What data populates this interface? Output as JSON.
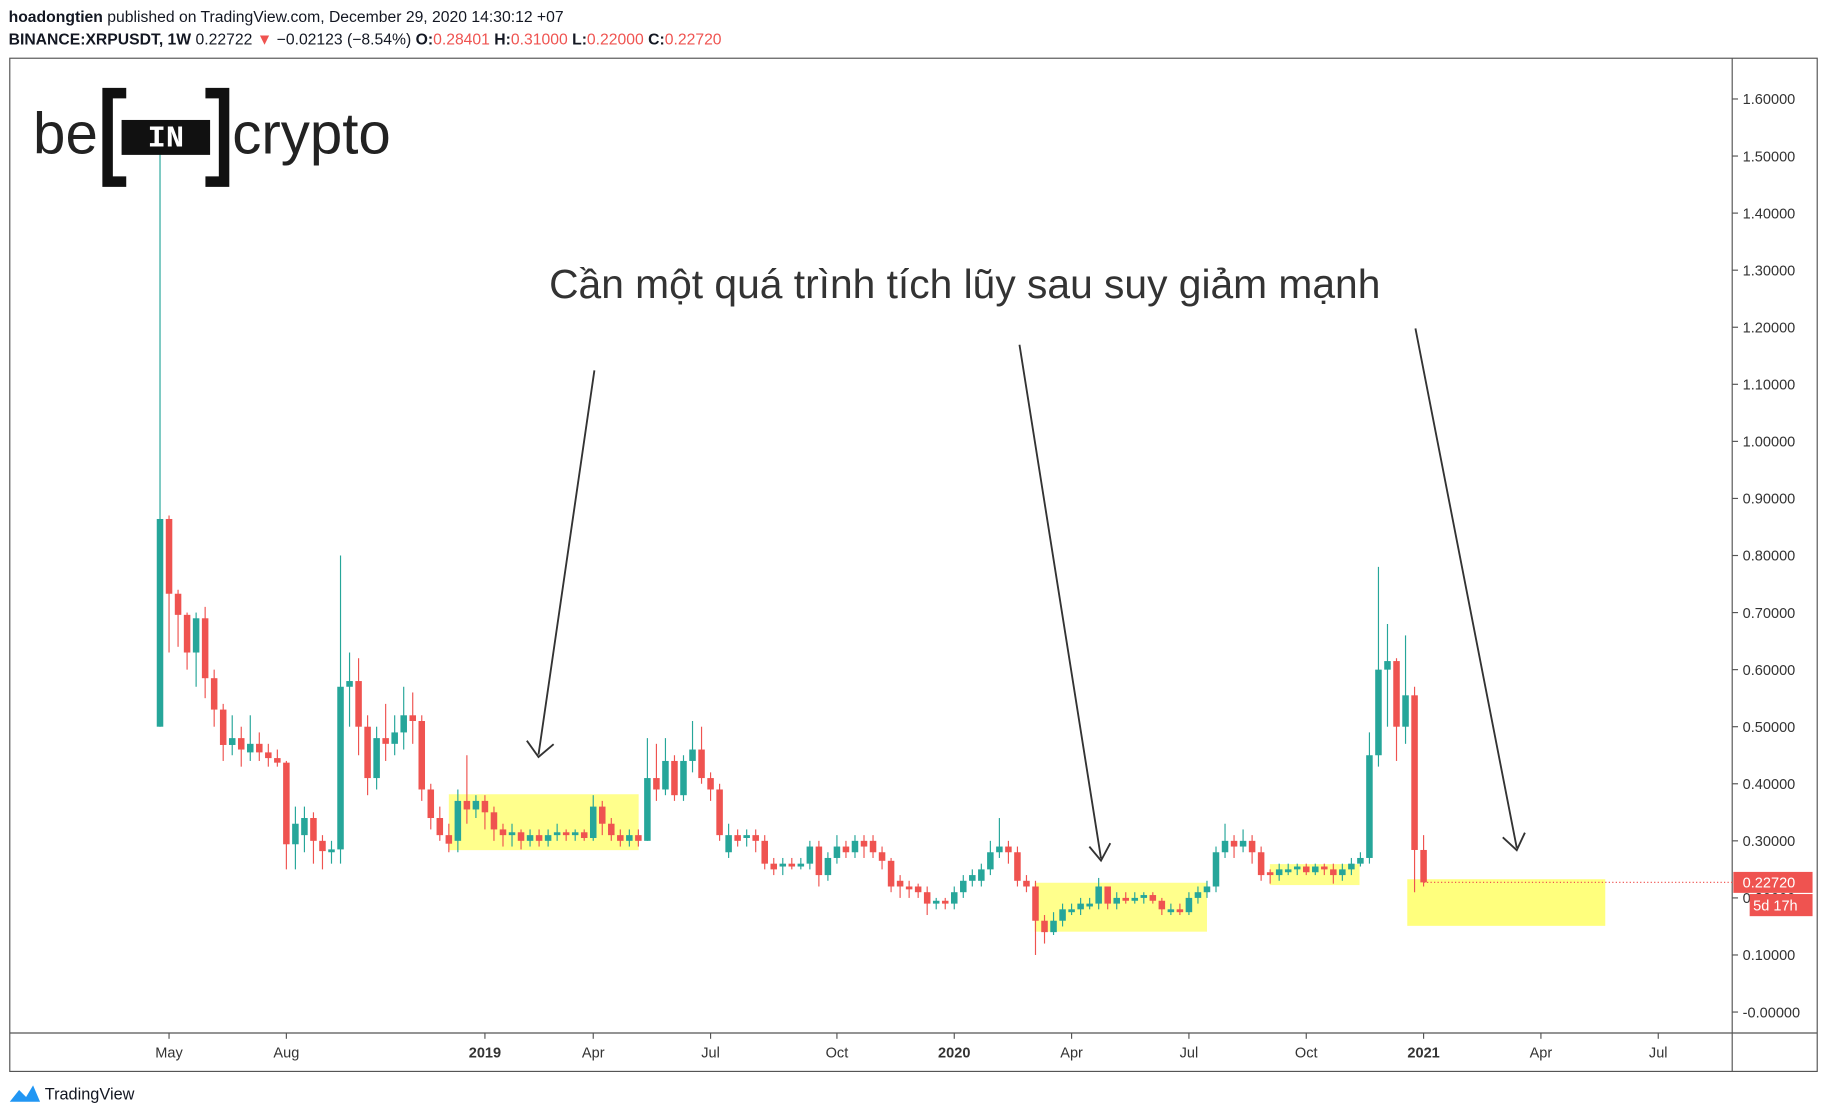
{
  "header": {
    "publisher": "hoadongtien",
    "published_text": "published on TradingView.com, December 29, 2020 14:30:12 +07",
    "symbol": "BINANCE:XRPUSDT, 1W",
    "last": "0.22722",
    "change": "−0.02123 (−8.54%)",
    "o_label": "O:",
    "o": "0.28401",
    "h_label": "H:",
    "h": "0.31000",
    "l_label": "L:",
    "l": "0.22000",
    "c_label": "C:",
    "c": "0.22720"
  },
  "logo": {
    "left": "be",
    "mid": "IN",
    "right": "crypto"
  },
  "footer": {
    "brand": "TradingView"
  },
  "chart_data": {
    "type": "candlestick",
    "annotation": "Cần một quá trình tích lũy sau suy giảm mạnh",
    "price_label": "0.22720",
    "countdown": "5d 17h",
    "up_color": "#26a69a",
    "down_color": "#ef5350",
    "grid": false,
    "ylim": [
      -0.0367,
      1.6714
    ],
    "yticks": [
      {
        "value": 0,
        "label": "-0.00000"
      },
      {
        "value": 0.1,
        "label": "0.10000"
      },
      {
        "value": 0.2,
        "label": "0.20000"
      },
      {
        "value": 0.3,
        "label": "0.30000"
      },
      {
        "value": 0.4,
        "label": "0.40000"
      },
      {
        "value": 0.5,
        "label": "0.50000"
      },
      {
        "value": 0.6,
        "label": "0.60000"
      },
      {
        "value": 0.7,
        "label": "0.70000"
      },
      {
        "value": 0.8,
        "label": "0.80000"
      },
      {
        "value": 0.9,
        "label": "0.90000"
      },
      {
        "value": 1.0,
        "label": "1.00000"
      },
      {
        "value": 1.1,
        "label": "1.10000"
      },
      {
        "value": 1.2,
        "label": "1.20000"
      },
      {
        "value": 1.3,
        "label": "1.30000"
      },
      {
        "value": 1.4,
        "label": "1.40000"
      },
      {
        "value": 1.5,
        "label": "1.50000"
      },
      {
        "value": 1.6,
        "label": "1.60000"
      }
    ],
    "categories": [
      null,
      "May",
      null,
      null,
      null,
      null,
      null,
      null,
      null,
      null,
      null,
      null,
      null,
      null,
      "Aug",
      null,
      null,
      null,
      null,
      null,
      null,
      null,
      null,
      null,
      null,
      null,
      null,
      null,
      null,
      null,
      null,
      null,
      null,
      null,
      null,
      null,
      "2019",
      null,
      null,
      null,
      null,
      null,
      null,
      null,
      null,
      null,
      null,
      null,
      "Apr",
      null,
      null,
      null,
      null,
      null,
      null,
      null,
      null,
      null,
      null,
      null,
      null,
      "Jul",
      null,
      null,
      null,
      null,
      null,
      null,
      null,
      null,
      null,
      null,
      null,
      null,
      null,
      "Oct",
      null,
      null,
      null,
      null,
      null,
      null,
      null,
      null,
      null,
      null,
      null,
      null,
      "2020",
      null,
      null,
      null,
      null,
      null,
      null,
      null,
      null,
      null,
      null,
      null,
      null,
      "Apr",
      null,
      null,
      null,
      null,
      null,
      null,
      null,
      null,
      null,
      null,
      null,
      null,
      "Jul",
      null,
      null,
      null,
      null,
      null,
      null,
      null,
      null,
      null,
      null,
      null,
      null,
      "Oct",
      null,
      null,
      null,
      null,
      null,
      null,
      null,
      null,
      null,
      null,
      null,
      null,
      "2021",
      null,
      null,
      null,
      null,
      null,
      null,
      null,
      null,
      null,
      null,
      null,
      null,
      "Apr",
      null,
      null,
      null,
      null,
      null,
      null,
      null,
      null,
      null,
      null,
      null,
      null,
      "Jul"
    ],
    "open": [
      0.5,
      0.864,
      0.733,
      0.696,
      0.63,
      0.69,
      0.585,
      0.53,
      0.468,
      0.48,
      0.455,
      0.47,
      0.455,
      0.445,
      0.437,
      0.294,
      0.31,
      0.34,
      0.3,
      0.28,
      0.285,
      0.57,
      0.58,
      0.5,
      0.41,
      0.48,
      0.47,
      0.49,
      0.52,
      0.51,
      0.39,
      0.34,
      0.31,
      0.3,
      0.37,
      0.355,
      0.37,
      0.35,
      0.32,
      0.31,
      0.315,
      0.3,
      0.31,
      0.3,
      0.31,
      0.315,
      0.31,
      0.315,
      0.305,
      0.36,
      0.33,
      0.31,
      0.3,
      0.31,
      0.3,
      0.41,
      0.39,
      0.44,
      0.38,
      0.44,
      0.46,
      0.41,
      0.39,
      0.28,
      0.31,
      0.305,
      0.31,
      0.3,
      0.26,
      0.255,
      0.26,
      0.255,
      0.26,
      0.29,
      0.24,
      0.27,
      0.29,
      0.28,
      0.3,
      0.3,
      0.28,
      0.265,
      0.23,
      0.22,
      0.22,
      0.21,
      0.19,
      0.195,
      0.19,
      0.21,
      0.23,
      0.23,
      0.25,
      0.28,
      0.29,
      0.28,
      0.23,
      0.22,
      0.16,
      0.14,
      0.16,
      0.175,
      0.18,
      0.185,
      0.19,
      0.22,
      0.19,
      0.2,
      0.195,
      0.2,
      0.205,
      0.195,
      0.175,
      0.18,
      0.175,
      0.2,
      0.21,
      0.22,
      0.28,
      0.3,
      0.29,
      0.3,
      0.28,
      0.245,
      0.24,
      0.245,
      0.25,
      0.255,
      0.245,
      0.255,
      0.25,
      0.24,
      0.25,
      0.26,
      0.27,
      0.45,
      0.6,
      0.615,
      0.5,
      0.555,
      0.28401,
      null,
      null,
      null,
      null,
      null,
      null,
      null,
      null,
      null,
      null,
      null,
      null,
      null,
      null,
      null,
      null,
      null,
      null,
      null,
      null,
      null,
      null,
      null,
      null,
      null,
      null
    ],
    "high": [
      1.51,
      0.87,
      0.74,
      0.7,
      0.7,
      0.71,
      0.6,
      0.54,
      0.52,
      0.5,
      0.52,
      0.49,
      0.47,
      0.46,
      0.44,
      0.36,
      0.36,
      0.35,
      0.31,
      0.3,
      0.8,
      0.63,
      0.62,
      0.52,
      0.5,
      0.54,
      0.52,
      0.57,
      0.56,
      0.52,
      0.4,
      0.36,
      0.33,
      0.39,
      0.45,
      0.38,
      0.38,
      0.36,
      0.33,
      0.33,
      0.32,
      0.32,
      0.32,
      0.32,
      0.33,
      0.32,
      0.32,
      0.32,
      0.38,
      0.37,
      0.34,
      0.32,
      0.32,
      0.32,
      0.48,
      0.47,
      0.48,
      0.45,
      0.45,
      0.51,
      0.5,
      0.42,
      0.4,
      0.33,
      0.32,
      0.32,
      0.32,
      0.31,
      0.27,
      0.27,
      0.27,
      0.27,
      0.3,
      0.3,
      0.28,
      0.31,
      0.3,
      0.31,
      0.31,
      0.31,
      0.29,
      0.27,
      0.24,
      0.23,
      0.225,
      0.22,
      0.2,
      0.2,
      0.22,
      0.24,
      0.25,
      0.26,
      0.3,
      0.34,
      0.3,
      0.29,
      0.24,
      0.23,
      0.17,
      0.175,
      0.19,
      0.19,
      0.2,
      0.2,
      0.235,
      0.22,
      0.21,
      0.21,
      0.21,
      0.21,
      0.21,
      0.2,
      0.19,
      0.19,
      0.21,
      0.22,
      0.23,
      0.29,
      0.33,
      0.31,
      0.32,
      0.31,
      0.29,
      0.25,
      0.26,
      0.26,
      0.26,
      0.26,
      0.26,
      0.26,
      0.26,
      0.26,
      0.27,
      0.28,
      0.49,
      0.78,
      0.68,
      0.62,
      0.66,
      0.57,
      0.31,
      null,
      null,
      null,
      null,
      null,
      null,
      null,
      null,
      null,
      null,
      null,
      null,
      null,
      null,
      null,
      null,
      null,
      null,
      null,
      null,
      null,
      null,
      null,
      null,
      null,
      null
    ],
    "low": [
      0.5,
      0.63,
      0.64,
      0.6,
      0.57,
      0.55,
      0.5,
      0.44,
      0.45,
      0.43,
      0.44,
      0.44,
      0.43,
      0.43,
      0.25,
      0.25,
      0.28,
      0.26,
      0.25,
      0.26,
      0.26,
      0.5,
      0.45,
      0.38,
      0.39,
      0.44,
      0.45,
      0.46,
      0.47,
      0.37,
      0.32,
      0.3,
      0.28,
      0.28,
      0.33,
      0.34,
      0.32,
      0.3,
      0.29,
      0.29,
      0.285,
      0.29,
      0.29,
      0.29,
      0.3,
      0.3,
      0.3,
      0.3,
      0.3,
      0.31,
      0.3,
      0.29,
      0.29,
      0.29,
      0.3,
      0.37,
      0.38,
      0.37,
      0.37,
      0.42,
      0.4,
      0.37,
      0.3,
      0.27,
      0.29,
      0.29,
      0.28,
      0.25,
      0.24,
      0.24,
      0.25,
      0.25,
      0.25,
      0.22,
      0.23,
      0.26,
      0.27,
      0.27,
      0.27,
      0.27,
      0.25,
      0.21,
      0.2,
      0.2,
      0.2,
      0.17,
      0.18,
      0.18,
      0.18,
      0.2,
      0.22,
      0.22,
      0.24,
      0.27,
      0.26,
      0.22,
      0.21,
      0.1,
      0.12,
      0.135,
      0.15,
      0.17,
      0.17,
      0.18,
      0.18,
      0.18,
      0.18,
      0.19,
      0.19,
      0.19,
      0.19,
      0.17,
      0.17,
      0.17,
      0.17,
      0.19,
      0.2,
      0.21,
      0.27,
      0.27,
      0.28,
      0.26,
      0.23,
      0.225,
      0.23,
      0.24,
      0.24,
      0.24,
      0.24,
      0.24,
      0.225,
      0.23,
      0.24,
      0.255,
      0.26,
      0.43,
      0.5,
      0.44,
      0.47,
      0.21,
      0.22,
      null,
      null,
      null,
      null,
      null,
      null,
      null,
      null,
      null,
      null,
      null,
      null,
      null,
      null,
      null,
      null,
      null,
      null,
      null,
      null,
      null,
      null,
      null,
      null,
      null,
      null
    ],
    "close": [
      0.864,
      0.733,
      0.696,
      0.63,
      0.69,
      0.585,
      0.53,
      0.468,
      0.48,
      0.46,
      0.47,
      0.455,
      0.445,
      0.437,
      0.294,
      0.33,
      0.34,
      0.3,
      0.282,
      0.285,
      0.57,
      0.58,
      0.5,
      0.41,
      0.48,
      0.47,
      0.49,
      0.52,
      0.51,
      0.39,
      0.34,
      0.31,
      0.295,
      0.37,
      0.355,
      0.37,
      0.35,
      0.32,
      0.31,
      0.315,
      0.3,
      0.31,
      0.3,
      0.31,
      0.315,
      0.31,
      0.315,
      0.305,
      0.36,
      0.33,
      0.31,
      0.3,
      0.31,
      0.3,
      0.41,
      0.39,
      0.44,
      0.38,
      0.44,
      0.46,
      0.41,
      0.39,
      0.31,
      0.31,
      0.3,
      0.31,
      0.3,
      0.26,
      0.25,
      0.26,
      0.255,
      0.26,
      0.29,
      0.24,
      0.27,
      0.29,
      0.28,
      0.3,
      0.29,
      0.28,
      0.265,
      0.22,
      0.22,
      0.215,
      0.21,
      0.19,
      0.195,
      0.19,
      0.21,
      0.23,
      0.24,
      0.25,
      0.28,
      0.29,
      0.28,
      0.23,
      0.22,
      0.16,
      0.14,
      0.16,
      0.18,
      0.18,
      0.19,
      0.19,
      0.22,
      0.19,
      0.2,
      0.195,
      0.2,
      0.205,
      0.195,
      0.18,
      0.18,
      0.175,
      0.2,
      0.21,
      0.22,
      0.28,
      0.3,
      0.29,
      0.3,
      0.28,
      0.24,
      0.24,
      0.25,
      0.25,
      0.255,
      0.245,
      0.255,
      0.25,
      0.24,
      0.25,
      0.26,
      0.27,
      0.45,
      0.6,
      0.615,
      0.5,
      0.555,
      0.284,
      0.2272,
      null,
      null,
      null,
      null,
      null,
      null,
      null,
      null,
      null,
      null,
      null,
      null,
      null,
      null,
      null,
      null,
      null,
      null,
      null,
      null,
      null,
      null,
      null,
      null,
      null,
      null
    ]
  }
}
